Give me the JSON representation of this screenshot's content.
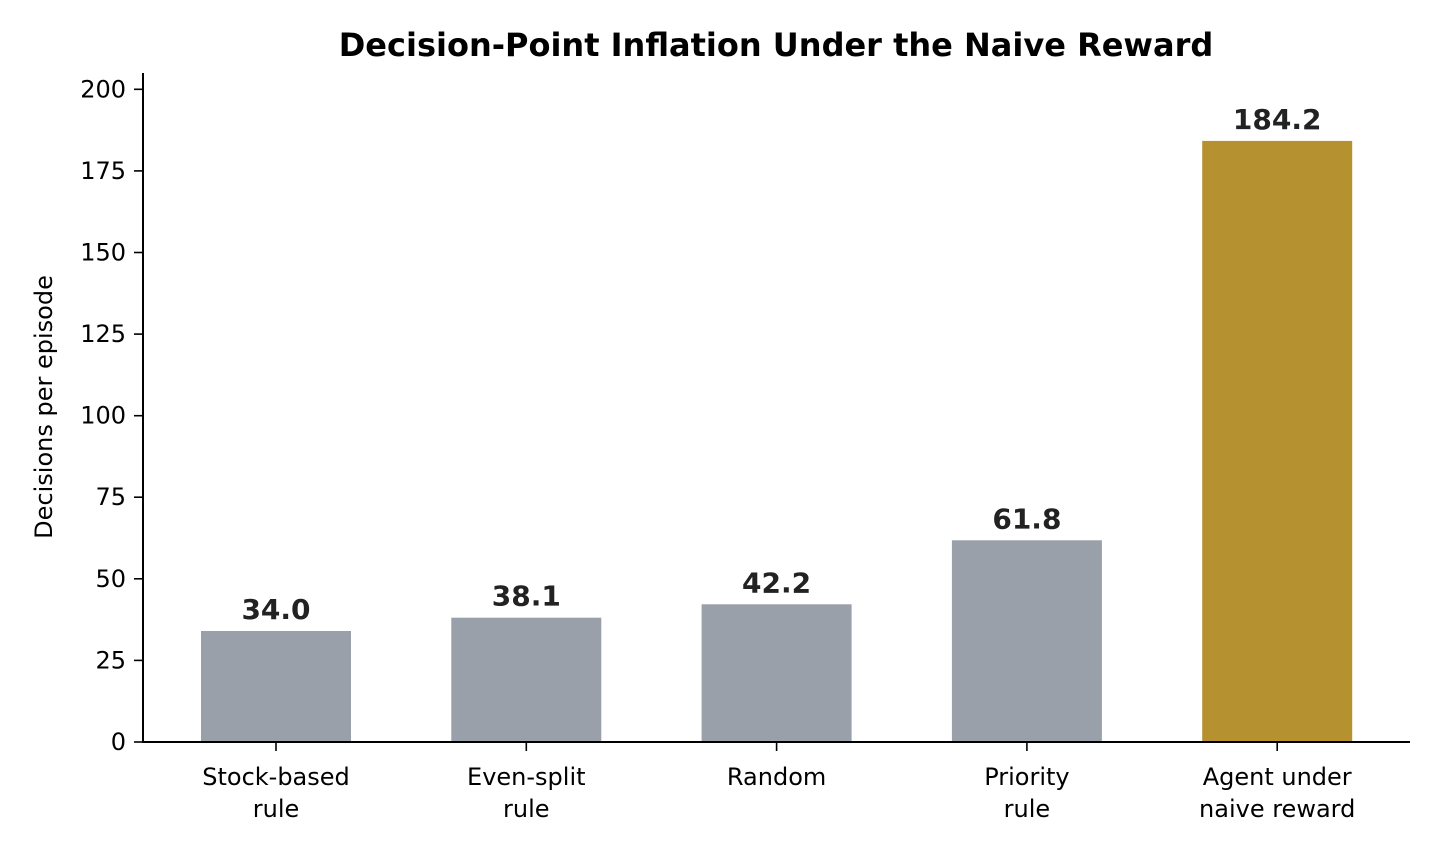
{
  "chart_data": {
    "type": "bar",
    "title": "Decision-Point Inflation Under the Naive Reward",
    "xlabel": "",
    "ylabel": "Decisions per episode",
    "ylim": [
      0,
      205
    ],
    "yticks": [
      0,
      25,
      50,
      75,
      100,
      125,
      150,
      175,
      200
    ],
    "grid": false,
    "categories": [
      [
        "Stock-based",
        "rule"
      ],
      [
        "Even-split",
        "rule"
      ],
      [
        "Random"
      ],
      [
        "Priority",
        "rule"
      ],
      [
        "Agent under",
        "naive reward"
      ]
    ],
    "values": [
      34.0,
      38.1,
      42.2,
      61.8,
      184.2
    ],
    "value_labels": [
      "34.0",
      "38.1",
      "42.2",
      "61.8",
      "184.2"
    ],
    "colors": [
      "#9aa0a9",
      "#9aa0a9",
      "#9aa0a9",
      "#9aa0a9",
      "#b59130"
    ],
    "label_color": "#222222"
  }
}
